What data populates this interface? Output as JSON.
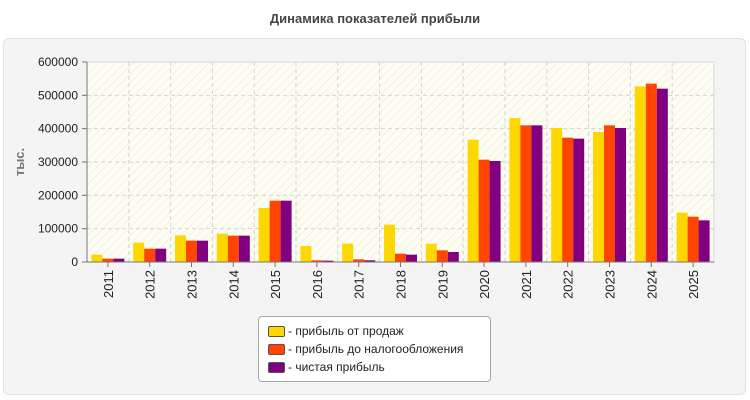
{
  "chart_data": {
    "type": "bar",
    "title": "Динамика показателей прибыли",
    "ylabel": "тыс.",
    "xlabel": "",
    "ylim": [
      0,
      600000
    ],
    "yticks": [
      0,
      100000,
      200000,
      300000,
      400000,
      500000,
      600000
    ],
    "grid": true,
    "legend_position": "bottom-center",
    "categories": [
      "2011",
      "2012",
      "2013",
      "2014",
      "2015",
      "2016",
      "2017",
      "2018",
      "2019",
      "2020",
      "2021",
      "2022",
      "2023",
      "2024",
      "2025"
    ],
    "series": [
      {
        "name": "- прибыль от продаж",
        "color": "#ffd700",
        "values": [
          22000,
          58000,
          80000,
          85000,
          162000,
          48000,
          55000,
          112000,
          55000,
          367000,
          432000,
          402000,
          390000,
          527000,
          148000
        ]
      },
      {
        "name": "- прибыль до налогообложения",
        "color": "#ff4500",
        "values": [
          10000,
          40000,
          64000,
          79000,
          184000,
          5000,
          8000,
          25000,
          35000,
          307000,
          410000,
          373000,
          410000,
          535000,
          136000
        ]
      },
      {
        "name": "- чистая прибыль",
        "color": "#800080",
        "values": [
          10000,
          40000,
          64000,
          79000,
          184000,
          4000,
          5000,
          22000,
          30000,
          303000,
          410000,
          370000,
          402000,
          520000,
          125000
        ]
      }
    ]
  }
}
